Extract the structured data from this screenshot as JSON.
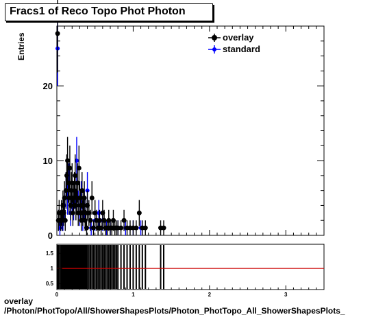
{
  "title": "Fracs1 of Reco Topo Phot Photon",
  "footer": {
    "line1": "overlay",
    "line2": "/Photon/PhotTopo/All/ShowerShapesPlots/Photon_PhotTopo_All_ShowerShapesPlots_"
  },
  "colors": {
    "overlay": "#000000",
    "standard": "#0000ff",
    "ratio_line": "#cc0000"
  },
  "chart_data": [
    {
      "type": "scatter",
      "ylabel": "Entries",
      "xlim": [
        0,
        3.5
      ],
      "ylim": [
        0,
        28
      ],
      "x_ticks": [
        0,
        1,
        2,
        3
      ],
      "y_ticks": [
        0,
        10,
        20
      ],
      "legend_position": "top-right",
      "series": [
        {
          "name": "overlay",
          "x": [
            0.01,
            0.02,
            0.03,
            0.05,
            0.06,
            0.07,
            0.08,
            0.09,
            0.1,
            0.11,
            0.12,
            0.13,
            0.14,
            0.15,
            0.16,
            0.17,
            0.18,
            0.19,
            0.2,
            0.21,
            0.22,
            0.23,
            0.24,
            0.25,
            0.26,
            0.27,
            0.28,
            0.29,
            0.3,
            0.31,
            0.32,
            0.33,
            0.34,
            0.35,
            0.36,
            0.37,
            0.38,
            0.39,
            0.4,
            0.42,
            0.44,
            0.46,
            0.48,
            0.5,
            0.52,
            0.54,
            0.56,
            0.58,
            0.6,
            0.62,
            0.64,
            0.66,
            0.68,
            0.7,
            0.72,
            0.74,
            0.76,
            0.78,
            0.8,
            0.84,
            0.88,
            0.92,
            0.96,
            1.0,
            1.04,
            1.08,
            1.12,
            1.16,
            1.36,
            1.4
          ],
          "y": [
            27,
            2,
            3,
            2,
            3,
            2,
            4,
            3,
            5,
            2,
            6,
            8,
            10,
            7,
            5,
            9,
            4,
            6,
            7,
            3,
            5,
            6,
            8,
            4,
            5,
            7,
            3,
            9,
            5,
            4,
            2,
            6,
            3,
            4,
            5,
            2,
            3,
            1,
            4,
            3,
            2,
            5,
            1,
            3,
            2,
            1,
            2,
            1,
            3,
            2,
            1,
            1,
            2,
            1,
            1,
            2,
            1,
            1,
            1,
            1,
            2,
            1,
            1,
            1,
            1,
            3,
            1,
            1,
            1,
            1
          ]
        },
        {
          "name": "standard",
          "x": [
            0.01,
            0.02,
            0.04,
            0.06,
            0.08,
            0.1,
            0.12,
            0.14,
            0.16,
            0.18,
            0.2,
            0.22,
            0.24,
            0.26,
            0.28,
            0.3,
            0.32,
            0.34,
            0.36,
            0.38,
            0.4,
            0.45,
            0.5,
            0.55,
            0.6,
            0.65,
            0.7,
            0.8,
            0.9,
            1.0,
            1.1
          ],
          "y": [
            25,
            2,
            1,
            3,
            2,
            4,
            6,
            5,
            7,
            3,
            5,
            4,
            6,
            10,
            4,
            3,
            5,
            2,
            4,
            3,
            6,
            1,
            2,
            3,
            2,
            1,
            1,
            1,
            1,
            1,
            1
          ]
        }
      ]
    },
    {
      "type": "line",
      "xlim": [
        0,
        3.5
      ],
      "ylim": [
        0.3,
        1.8
      ],
      "x_ticks": [
        0,
        1,
        2,
        3
      ],
      "y_ticks": [
        0.5,
        1,
        1.5
      ],
      "x_tick_labels": [
        "0",
        "1",
        "2",
        "3"
      ],
      "y_tick_labels": [
        "0.5",
        "1",
        "1.5"
      ],
      "reference_line": 1.0,
      "bars_x": [
        0.01,
        0.02,
        0.03,
        0.05,
        0.06,
        0.07,
        0.08,
        0.09,
        0.1,
        0.11,
        0.12,
        0.13,
        0.14,
        0.15,
        0.16,
        0.17,
        0.18,
        0.19,
        0.2,
        0.21,
        0.22,
        0.23,
        0.24,
        0.25,
        0.26,
        0.27,
        0.28,
        0.29,
        0.3,
        0.31,
        0.32,
        0.33,
        0.34,
        0.35,
        0.36,
        0.37,
        0.38,
        0.39,
        0.4,
        0.42,
        0.44,
        0.46,
        0.48,
        0.5,
        0.52,
        0.54,
        0.56,
        0.58,
        0.6,
        0.62,
        0.64,
        0.66,
        0.68,
        0.7,
        0.72,
        0.74,
        0.76,
        0.78,
        0.8,
        0.84,
        0.88,
        0.92,
        0.96,
        1.0,
        1.04,
        1.08,
        1.12,
        1.16,
        1.36,
        1.4
      ]
    }
  ]
}
